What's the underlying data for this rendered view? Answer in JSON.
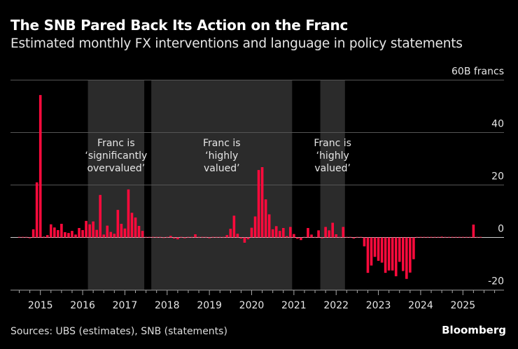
{
  "header": {
    "title": "The SNB Pared Back Its Action on the Franc",
    "subtitle": "Estimated monthly FX interventions and language in policy statements"
  },
  "footer": {
    "source": "Sources: UBS (estimates), SNB (statements)",
    "brand": "Bloomberg"
  },
  "colors": {
    "bar": "#ff0a3c",
    "shade": "#2b2b2b",
    "background": "#000000",
    "grid": "#555555"
  },
  "chart_data": {
    "type": "bar",
    "title": "The SNB Pared Back Its Action on the Franc",
    "subtitle": "Estimated monthly FX interventions and language in policy statements",
    "y_unit_label": "60B francs",
    "ylim": [
      -20,
      60
    ],
    "y_ticks": [
      60,
      40,
      20,
      0,
      -20
    ],
    "y_tick_labels": [
      "60B francs",
      "40",
      "20",
      "0",
      "-20"
    ],
    "y_axis_side": "right",
    "x_tick_labels": [
      "2015",
      "2016",
      "2017",
      "2018",
      "2019",
      "2020",
      "2021",
      "2022",
      "2023",
      "2024",
      "2025"
    ],
    "grid": true,
    "start_month": "2014-07",
    "values": [
      0,
      0.2,
      0,
      -0.3,
      3.1,
      21,
      54.3,
      0.3,
      0.9,
      5,
      3.8,
      2.8,
      5.2,
      2,
      1.7,
      2.5,
      1.1,
      3.6,
      2.8,
      6.3,
      5,
      6.1,
      2.9,
      16.2,
      1.1,
      4.5,
      2.1,
      1.4,
      10.5,
      5.2,
      3.4,
      18.3,
      9.4,
      7.6,
      4.4,
      2.5,
      0,
      0,
      0,
      0,
      0.1,
      -0.1,
      0,
      0.6,
      -0.4,
      -0.7,
      0,
      -0.3,
      0,
      0,
      1.2,
      0,
      0,
      0,
      -0.3,
      0.2,
      0,
      0,
      0,
      0.9,
      3.3,
      8.3,
      1.4,
      -0.4,
      -2,
      -0.7,
      3.7,
      8,
      25.7,
      26.8,
      14.5,
      8.8,
      3.1,
      4.3,
      2.5,
      3.6,
      0.5,
      4,
      1.3,
      -0.5,
      -1,
      0,
      3.6,
      1.1,
      0,
      2.7,
      -0.3,
      4,
      2.7,
      5.6,
      1.2,
      0.2,
      4,
      0,
      0,
      -0.4,
      0,
      0,
      -3.4,
      -13.5,
      -10.7,
      -7.4,
      -8.9,
      -9.6,
      -13.5,
      -12.6,
      -12.6,
      -14.8,
      -9.3,
      -12.8,
      -15.8,
      -13.4,
      -8.3,
      0,
      0,
      0,
      0,
      0.1,
      0,
      0.1,
      0.3,
      0,
      0,
      0.1,
      0,
      0.1,
      0,
      0,
      0,
      4.9,
      0.2,
      0
    ],
    "shaded_periods": [
      {
        "start": "2016-03",
        "end": "2017-06",
        "label": [
          "Franc is",
          "‘significantly",
          "overvalued’"
        ]
      },
      {
        "start": "2017-09",
        "end": "2020-12",
        "label": [
          "Franc is",
          "‘highly",
          "valued’"
        ]
      },
      {
        "start": "2021-09",
        "end": "2022-03",
        "label": [
          "Franc is",
          "‘highly",
          "valued’"
        ]
      }
    ]
  }
}
